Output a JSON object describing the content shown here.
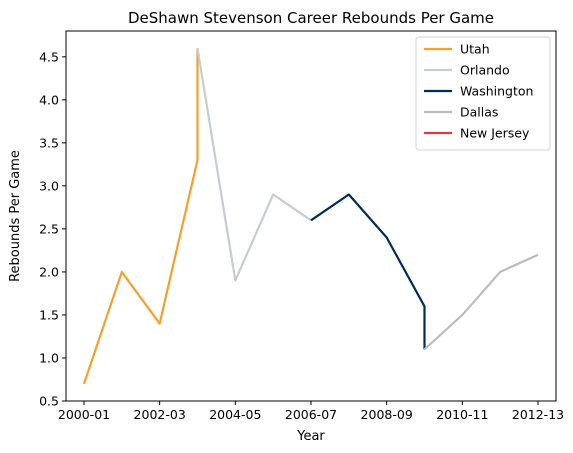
{
  "chart_data": {
    "type": "line",
    "title": "DeShawn Stevenson Career Rebounds Per Game",
    "xlabel": "Year",
    "ylabel": "Rebounds Per Game",
    "x_ticks": [
      "2000-01",
      "2002-03",
      "2004-05",
      "2006-07",
      "2008-09",
      "2010-11",
      "2012-13"
    ],
    "y_ticks": [
      "0.5",
      "1.0",
      "1.5",
      "2.0",
      "2.5",
      "3.0",
      "3.5",
      "4.0",
      "4.5"
    ],
    "ylim": [
      0.5,
      4.8
    ],
    "xlim": [
      "2000-01",
      "2012-13"
    ],
    "legend_position": "top-right",
    "grid": false,
    "series": [
      {
        "name": "Utah",
        "color": "#f5a02a",
        "points": [
          {
            "x": "2000-01",
            "y": 0.7
          },
          {
            "x": "2001-02",
            "y": 2.0
          },
          {
            "x": "2002-03",
            "y": 1.4
          },
          {
            "x": "2003-04",
            "y": 3.3
          },
          {
            "x": "2003-04",
            "y": 4.6
          }
        ]
      },
      {
        "name": "Orlando",
        "color": "#c4cdd3",
        "points": [
          {
            "x": "2003-04",
            "y": 4.6
          },
          {
            "x": "2004-05",
            "y": 1.9
          },
          {
            "x": "2005-06",
            "y": 2.9
          },
          {
            "x": "2006-07",
            "y": 2.6
          }
        ]
      },
      {
        "name": "Washington",
        "color": "#002b5c",
        "points": [
          {
            "x": "2006-07",
            "y": 2.6
          },
          {
            "x": "2007-08",
            "y": 2.9
          },
          {
            "x": "2008-09",
            "y": 2.4
          },
          {
            "x": "2009-10",
            "y": 1.6
          },
          {
            "x": "2009-10",
            "y": 1.1
          }
        ]
      },
      {
        "name": "Dallas",
        "color": "#bbbcbe",
        "points": [
          {
            "x": "2009-10",
            "y": 1.1
          },
          {
            "x": "2010-11",
            "y": 1.5
          },
          {
            "x": "2011-12",
            "y": 2.0
          },
          {
            "x": "2012-13",
            "y": 2.2
          }
        ]
      },
      {
        "name": "New Jersey",
        "color": "#e03a3e",
        "points": []
      }
    ]
  }
}
